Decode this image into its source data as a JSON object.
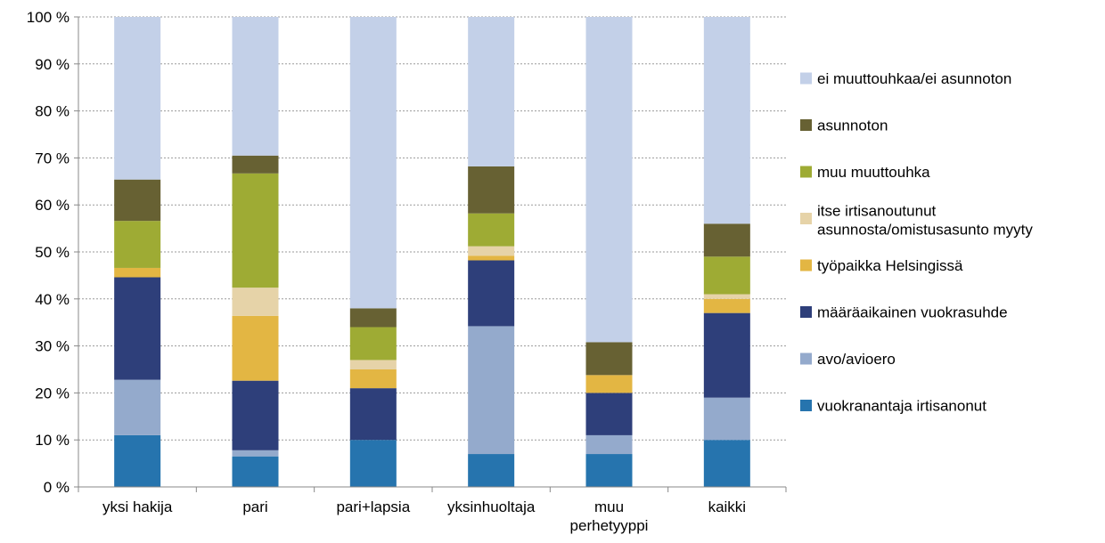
{
  "chart_data": {
    "type": "bar",
    "stacked": true,
    "categories": [
      [
        "yksi hakija"
      ],
      [
        "pari"
      ],
      [
        "pari+lapsia"
      ],
      [
        "yksinhuoltaja"
      ],
      [
        "muu",
        "perhetyyppi"
      ],
      [
        "kaikki"
      ]
    ],
    "series": [
      {
        "name": "vuokranantaja irtisanonut",
        "color": "#2674ae",
        "values": [
          11,
          6.5,
          10,
          7,
          7,
          10
        ]
      },
      {
        "name": "avo/avioero",
        "color": "#94aacc",
        "values": [
          11.8,
          1.3,
          0,
          27.2,
          4,
          9
        ]
      },
      {
        "name": "määräaikainen vuokrasuhde",
        "color": "#2e3f7a",
        "values": [
          21.8,
          14.8,
          11,
          14,
          9,
          18
        ]
      },
      {
        "name": "työpaikka Helsingissä",
        "color": "#e3b643",
        "values": [
          2,
          13.8,
          4,
          1,
          3.8,
          3
        ]
      },
      {
        "name": "itse irtisanoutunut asunnosta/omistusasunto myyty",
        "color": "#e6d3a8",
        "values": [
          0,
          6,
          2,
          2,
          0,
          1
        ]
      },
      {
        "name": "muu muuttouhka",
        "color": "#9eab34",
        "values": [
          10,
          24.3,
          7,
          7,
          0,
          8
        ]
      },
      {
        "name": "asunnoton",
        "color": "#676133",
        "values": [
          8.8,
          3.8,
          4,
          10,
          7,
          7
        ]
      },
      {
        "name": "ei muuttouhkaa/ei asunnoton",
        "color": "#c3d0e8",
        "values": [
          34.6,
          29.5,
          62,
          31.8,
          69.2,
          44
        ]
      }
    ],
    "legend_labels": [
      [
        "ei muuttouhkaa/ei asunnoton"
      ],
      [
        "asunnoton"
      ],
      [
        "muu muuttouhka"
      ],
      [
        "itse irtisanoutunut",
        "asunnosta/omistusasunto myyty"
      ],
      [
        "työpaikka Helsingissä"
      ],
      [
        "määräaikainen vuokrasuhde"
      ],
      [
        "avo/avioero"
      ],
      [
        "vuokranantaja irtisanonut"
      ]
    ],
    "y_ticks": [
      "0 %",
      "10 %",
      "20 %",
      "30 %",
      "40 %",
      "50 %",
      "60 %",
      "70 %",
      "80 %",
      "90 %",
      "100 %"
    ],
    "ylim": [
      0,
      100
    ],
    "grid": true,
    "legend_position": "right",
    "title": "",
    "xlabel": "",
    "ylabel": ""
  }
}
